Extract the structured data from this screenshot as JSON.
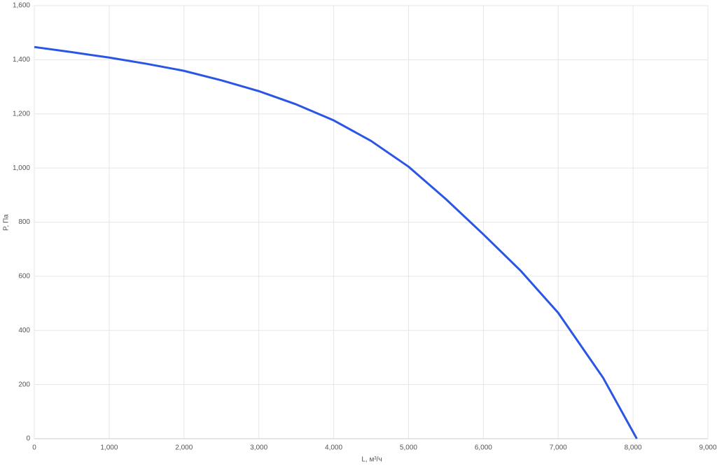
{
  "chart_data": {
    "type": "line",
    "x_label": "L, м³/ч",
    "y_label": "P, Па",
    "x": [
      0,
      500,
      1000,
      1500,
      2000,
      2500,
      3000,
      3500,
      4000,
      4500,
      5000,
      5500,
      6000,
      6500,
      7000,
      7600,
      8050
    ],
    "series": [
      {
        "name": "P",
        "color": "#2a55e5",
        "values": [
          1447,
          1428,
          1408,
          1385,
          1359,
          1324,
          1284,
          1235,
          1176,
          1100,
          1005,
          885,
          755,
          620,
          465,
          225,
          0
        ]
      }
    ],
    "xlim": [
      0,
      9000
    ],
    "xticks": [
      0,
      {
        "value": 1000,
        "label": "1,000"
      },
      {
        "value": 2000,
        "label": "2,000"
      },
      {
        "value": 3000,
        "label": "3,000"
      },
      {
        "value": 4000,
        "label": "4,000"
      },
      {
        "value": 5000,
        "label": "5,000"
      },
      {
        "value": 6000,
        "label": "6,000"
      },
      {
        "value": 7000,
        "label": "7,000"
      },
      {
        "value": 8000,
        "label": "8,000"
      },
      {
        "value": 9000,
        "label": "9,000"
      }
    ],
    "ylim": [
      0,
      1600
    ],
    "yticks": [
      0,
      200,
      400,
      600,
      800,
      {
        "value": 1000,
        "label": "1,000"
      },
      {
        "value": 1200,
        "label": "1,200"
      },
      {
        "value": 1400,
        "label": "1,400"
      },
      {
        "value": 1600,
        "label": "1,600"
      }
    ],
    "grid": true
  }
}
